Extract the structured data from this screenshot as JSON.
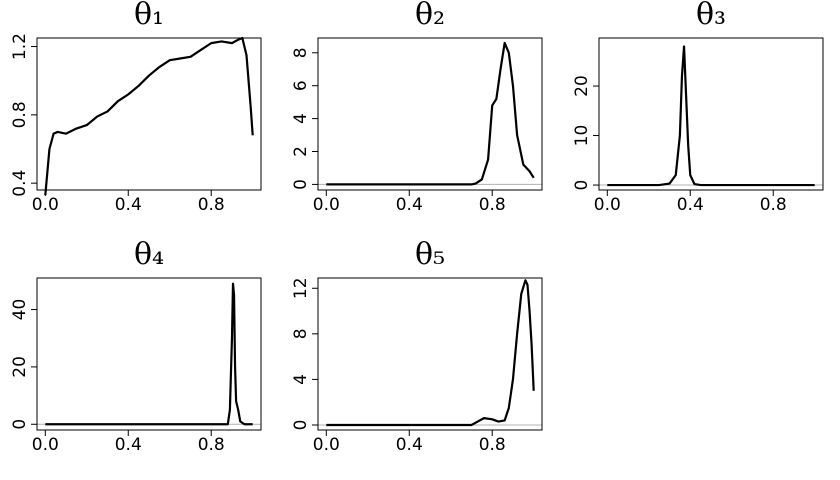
{
  "chart_data": [
    {
      "type": "line",
      "title": "θ₁",
      "color": "#000000",
      "x": [
        0,
        0.02,
        0.04,
        0.06,
        0.1,
        0.15,
        0.2,
        0.25,
        0.3,
        0.35,
        0.4,
        0.45,
        0.5,
        0.55,
        0.6,
        0.65,
        0.7,
        0.75,
        0.8,
        0.85,
        0.9,
        0.93,
        0.95,
        0.97,
        0.99,
        1.0
      ],
      "values": [
        0.33,
        0.6,
        0.69,
        0.7,
        0.69,
        0.72,
        0.74,
        0.79,
        0.82,
        0.88,
        0.92,
        0.97,
        1.03,
        1.08,
        1.12,
        1.13,
        1.14,
        1.18,
        1.22,
        1.23,
        1.22,
        1.24,
        1.25,
        1.15,
        0.85,
        0.68
      ],
      "xlim": [
        -0.04,
        1.04
      ],
      "xticks": [
        {
          "value": 0,
          "label": "0.0"
        },
        {
          "value": 0.4,
          "label": "0.4"
        },
        {
          "value": 0.8,
          "label": "0.8"
        }
      ],
      "ylim": [
        0.36,
        1.25
      ],
      "yticks": [
        0.4,
        0.8,
        1.2
      ]
    },
    {
      "type": "line",
      "title": "θ₂",
      "color": "#000000",
      "x": [
        0,
        0.7,
        0.72,
        0.75,
        0.78,
        0.8,
        0.82,
        0.84,
        0.86,
        0.88,
        0.9,
        0.92,
        0.95,
        0.98,
        1.0
      ],
      "values": [
        0,
        0,
        0.05,
        0.3,
        1.5,
        4.8,
        5.2,
        7,
        8.6,
        8.0,
        6,
        3,
        1.2,
        0.8,
        0.4
      ],
      "xlim": [
        -0.04,
        1.04
      ],
      "xticks": [
        {
          "value": 0,
          "label": "0.0"
        },
        {
          "value": 0.4,
          "label": "0.4"
        },
        {
          "value": 0.8,
          "label": "0.8"
        }
      ],
      "ylim": [
        -0.34,
        8.9
      ],
      "yticks": [
        0,
        2,
        4,
        6,
        8
      ]
    },
    {
      "type": "line",
      "title": "θ₃",
      "color": "#000000",
      "x": [
        0,
        0.25,
        0.3,
        0.33,
        0.35,
        0.36,
        0.37,
        0.38,
        0.39,
        0.4,
        0.42,
        0.45,
        1.0
      ],
      "values": [
        0,
        0,
        0.3,
        2,
        10,
        22,
        28,
        18,
        8,
        2,
        0.2,
        0,
        0
      ],
      "xlim": [
        -0.04,
        1.04
      ],
      "xticks": [
        {
          "value": 0,
          "label": "0.0"
        },
        {
          "value": 0.4,
          "label": "0.4"
        },
        {
          "value": 0.8,
          "label": "0.8"
        }
      ],
      "ylim": [
        -1.0,
        29.7
      ],
      "yticks": [
        0,
        10,
        20
      ]
    },
    {
      "type": "line",
      "title": "θ₄",
      "color": "#000000",
      "x": [
        0,
        0.88,
        0.89,
        0.9,
        0.905,
        0.91,
        0.915,
        0.92,
        0.93,
        0.94,
        0.96,
        1.0
      ],
      "values": [
        0,
        0,
        5,
        30,
        49,
        45,
        20,
        8,
        5,
        1,
        0,
        0
      ],
      "xlim": [
        -0.04,
        1.04
      ],
      "xticks": [
        {
          "value": 0,
          "label": "0.0"
        },
        {
          "value": 0.4,
          "label": "0.4"
        },
        {
          "value": 0.8,
          "label": "0.8"
        }
      ],
      "ylim": [
        -2,
        51
      ],
      "yticks": [
        0,
        20,
        40
      ]
    },
    {
      "type": "line",
      "title": "θ₅",
      "color": "#000000",
      "x": [
        0,
        0.7,
        0.73,
        0.76,
        0.8,
        0.83,
        0.86,
        0.88,
        0.9,
        0.92,
        0.94,
        0.96,
        0.97,
        0.98,
        0.99,
        1.0
      ],
      "values": [
        0,
        0,
        0.3,
        0.6,
        0.5,
        0.3,
        0.4,
        1.5,
        4,
        8,
        11.5,
        12.7,
        12.3,
        10,
        7,
        3
      ],
      "xlim": [
        -0.04,
        1.04
      ],
      "xticks": [
        {
          "value": 0,
          "label": "0.0"
        },
        {
          "value": 0.4,
          "label": "0.4"
        },
        {
          "value": 0.8,
          "label": "0.8"
        }
      ],
      "ylim": [
        -0.44,
        12.9
      ],
      "yticks": [
        0,
        4,
        8,
        12
      ]
    }
  ]
}
